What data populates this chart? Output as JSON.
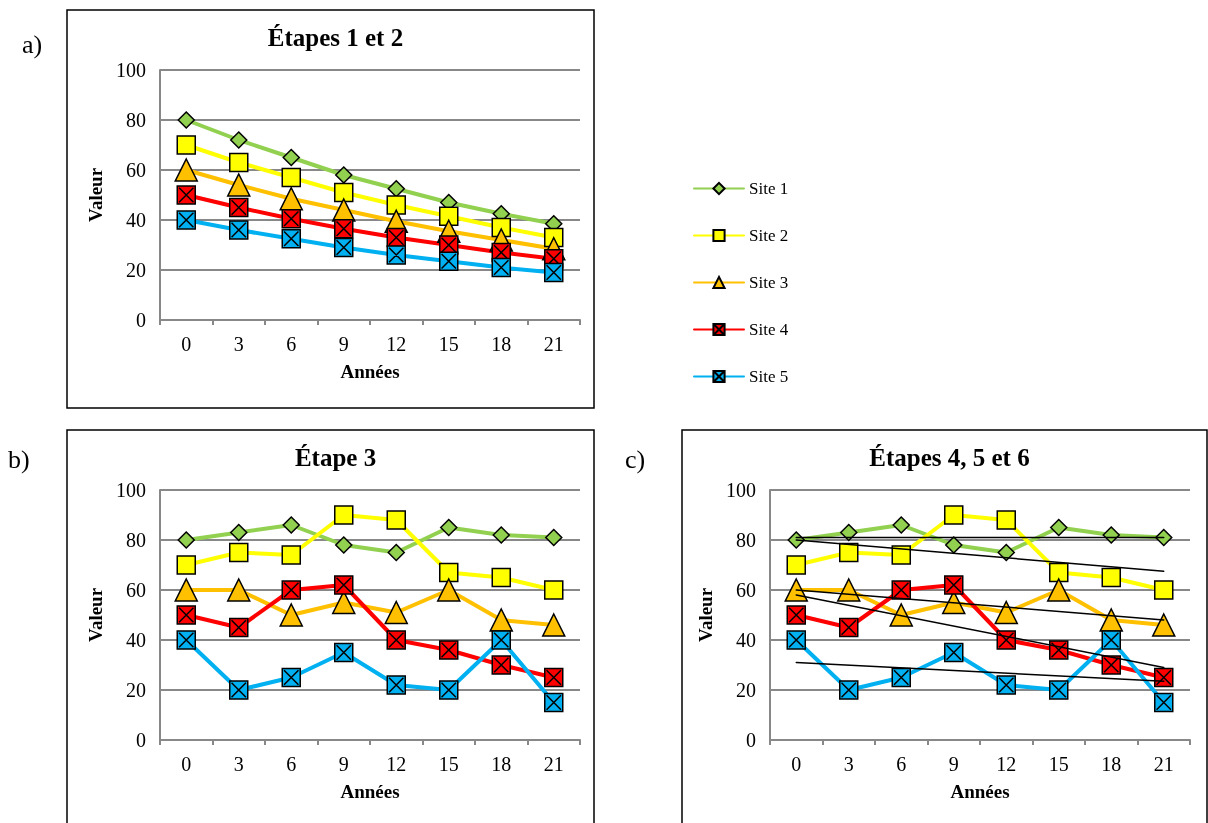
{
  "chart_data": [
    {
      "type": "line",
      "title": "Étapes 1 et 2",
      "xlabel": "Années",
      "ylabel": "Valeur",
      "annotations": [
        "a)"
      ],
      "categories": [
        "0",
        "3",
        "6",
        "9",
        "12",
        "15",
        "18",
        "21"
      ],
      "ylim": [
        0,
        100
      ],
      "yticks": [
        0,
        20,
        40,
        60,
        80,
        100
      ],
      "grid": "y",
      "legend": "right",
      "line_style": "solid",
      "series": [
        {
          "name": "Site 1",
          "color": "#92d050",
          "marker": "diamond",
          "values": [
            80,
            72,
            65,
            58,
            52.5,
            47,
            42.5,
            38.5
          ]
        },
        {
          "name": "Site 2",
          "color": "#ffff00",
          "marker": "square",
          "values": [
            70,
            63,
            57,
            51,
            46,
            41.5,
            37,
            33
          ]
        },
        {
          "name": "Site 3",
          "color": "#ffc000",
          "marker": "triangle",
          "values": [
            60,
            54,
            48.5,
            44,
            39.5,
            35.5,
            32,
            28.5
          ]
        },
        {
          "name": "Site 4",
          "color": "#ff0000",
          "marker": "cross",
          "values": [
            50,
            45,
            40.5,
            36.5,
            33,
            30,
            27,
            24.5
          ]
        },
        {
          "name": "Site 5",
          "color": "#00b0f0",
          "marker": "cross",
          "values": [
            40,
            36,
            32.5,
            29,
            26,
            23.5,
            21,
            19
          ]
        }
      ]
    },
    {
      "type": "line",
      "title": "Étape 3",
      "xlabel": "Années",
      "ylabel": "Valeur",
      "annotations": [
        "b)"
      ],
      "categories": [
        "0",
        "3",
        "6",
        "9",
        "12",
        "15",
        "18",
        "21"
      ],
      "ylim": [
        0,
        100
      ],
      "yticks": [
        0,
        20,
        40,
        60,
        80,
        100
      ],
      "grid": "y",
      "line_style": "solid",
      "series": [
        {
          "color": "#92d050",
          "marker": "diamond",
          "values": [
            80,
            83,
            86,
            78,
            75,
            85,
            82,
            81
          ]
        },
        {
          "color": "#ffff00",
          "marker": "square",
          "values": [
            70,
            75,
            74,
            90,
            88,
            67,
            65,
            60
          ]
        },
        {
          "color": "#ffc000",
          "marker": "triangle",
          "values": [
            60,
            60,
            50,
            55,
            51,
            60,
            48,
            46
          ]
        },
        {
          "color": "#ff0000",
          "marker": "cross",
          "values": [
            50,
            45,
            60,
            62,
            40,
            36,
            30,
            25
          ]
        },
        {
          "color": "#00b0f0",
          "marker": "cross",
          "values": [
            40,
            20,
            25,
            35,
            22,
            20,
            40,
            15
          ]
        }
      ]
    },
    {
      "type": "line",
      "title": "Étapes 4, 5 et 6",
      "xlabel": "Années",
      "ylabel": "Valeur",
      "annotations": [
        "c)"
      ],
      "categories": [
        "0",
        "3",
        "6",
        "9",
        "12",
        "15",
        "18",
        "21"
      ],
      "ylim": [
        0,
        100
      ],
      "yticks": [
        0,
        20,
        40,
        60,
        80,
        100
      ],
      "grid": "y",
      "line_style": "solid",
      "series": [
        {
          "color": "#92d050",
          "marker": "diamond",
          "values": [
            80,
            83,
            86,
            78,
            75,
            85,
            82,
            81
          ]
        },
        {
          "color": "#ffff00",
          "marker": "square",
          "values": [
            70,
            75,
            74,
            90,
            88,
            67,
            65,
            60
          ]
        },
        {
          "color": "#ffc000",
          "marker": "triangle",
          "values": [
            60,
            60,
            50,
            55,
            51,
            60,
            48,
            46
          ]
        },
        {
          "color": "#ff0000",
          "marker": "cross",
          "values": [
            50,
            45,
            60,
            62,
            40,
            36,
            30,
            25
          ]
        },
        {
          "color": "#00b0f0",
          "marker": "cross",
          "values": [
            40,
            20,
            25,
            35,
            22,
            20,
            40,
            15
          ]
        },
        {
          "type": "line",
          "color": "#000000",
          "marker": "none",
          "x": [
            "0",
            "21"
          ],
          "values": [
            81,
            81
          ]
        },
        {
          "type": "line",
          "color": "#000000",
          "marker": "none",
          "x": [
            "0",
            "21"
          ],
          "values": [
            80,
            67.5
          ]
        },
        {
          "type": "line",
          "color": "#000000",
          "marker": "none",
          "x": [
            "0",
            "21"
          ],
          "values": [
            60,
            48
          ]
        },
        {
          "type": "line",
          "color": "#000000",
          "marker": "none",
          "x": [
            "0",
            "21"
          ],
          "values": [
            58,
            29
          ]
        },
        {
          "type": "line",
          "color": "#000000",
          "marker": "none",
          "x": [
            "0",
            "21"
          ],
          "values": [
            31,
            23.5
          ]
        }
      ]
    }
  ]
}
